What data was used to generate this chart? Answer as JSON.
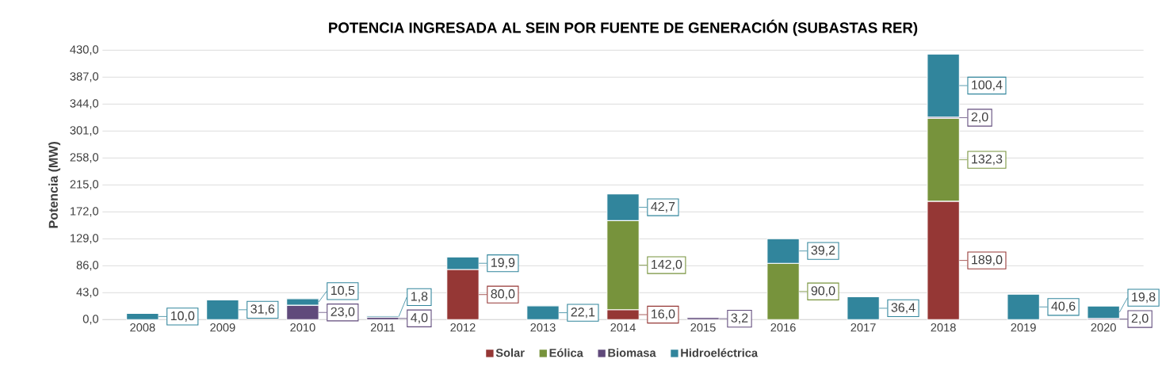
{
  "chart_data": {
    "type": "bar",
    "stacked": true,
    "title": "POTENCIA INGRESADA AL SEIN POR FUENTE DE GENERACIÓN (SUBASTAS RER)",
    "ylabel": "Potencia (MW)",
    "categories": [
      "2008",
      "2009",
      "2010",
      "2011",
      "2012",
      "2013",
      "2014",
      "2015",
      "2016",
      "2017",
      "2018",
      "2019",
      "2020"
    ],
    "series": [
      {
        "name": "Solar",
        "color": "#953735",
        "values": [
          null,
          null,
          null,
          null,
          80.0,
          null,
          16.0,
          null,
          null,
          null,
          189.0,
          null,
          null
        ],
        "value_labels": [
          null,
          null,
          null,
          null,
          "80,0",
          null,
          "16,0",
          null,
          null,
          null,
          "189,0",
          null,
          null
        ]
      },
      {
        "name": "Eólica",
        "color": "#77933c",
        "values": [
          null,
          null,
          null,
          null,
          null,
          null,
          142.0,
          null,
          90.0,
          null,
          132.3,
          null,
          null
        ],
        "value_labels": [
          null,
          null,
          null,
          null,
          null,
          null,
          "142,0",
          null,
          "90,0",
          null,
          "132,3",
          null,
          null
        ]
      },
      {
        "name": "Biomasa",
        "color": "#604a7b",
        "values": [
          null,
          null,
          23.0,
          4.0,
          null,
          null,
          null,
          3.2,
          null,
          null,
          2.0,
          null,
          2.0
        ],
        "value_labels": [
          null,
          null,
          "23,0",
          "4,0",
          null,
          null,
          null,
          "3,2",
          null,
          null,
          "2,0",
          null,
          "2,0"
        ]
      },
      {
        "name": "Hidroeléctrica",
        "color": "#31859c",
        "values": [
          10.0,
          31.6,
          10.5,
          1.8,
          19.9,
          22.1,
          42.7,
          null,
          39.2,
          36.4,
          100.4,
          40.6,
          19.8
        ],
        "value_labels": [
          "10,0",
          "31,6",
          "10,5",
          "1,8",
          "19,9",
          "22,1",
          "42,7",
          null,
          "39,2",
          "36,4",
          "100,4",
          "40,6",
          "19,8"
        ]
      }
    ],
    "ylim": [
      0,
      430
    ],
    "yticks": [
      {
        "value": 0,
        "label": "0,0"
      },
      {
        "value": 43,
        "label": "43,0"
      },
      {
        "value": 86,
        "label": "86,0"
      },
      {
        "value": 129,
        "label": "129,0"
      },
      {
        "value": 172,
        "label": "172,0"
      },
      {
        "value": 215,
        "label": "215,0"
      },
      {
        "value": 258,
        "label": "258,0"
      },
      {
        "value": 301,
        "label": "301,0"
      },
      {
        "value": 344,
        "label": "344,0"
      },
      {
        "value": 387,
        "label": "387,0"
      },
      {
        "value": 430,
        "label": "430,0"
      }
    ],
    "grid": "y",
    "legend": "bottom"
  }
}
